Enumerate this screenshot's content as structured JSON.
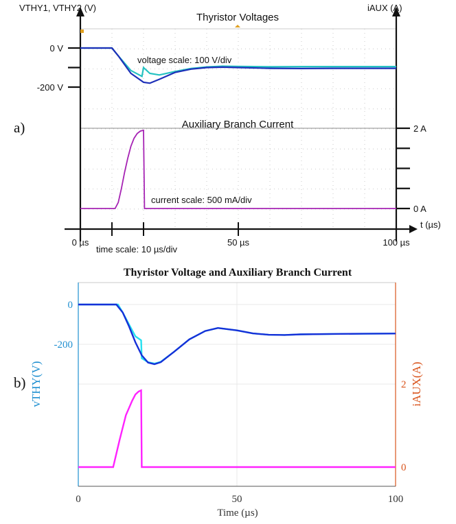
{
  "panel_a": {
    "label": "a)",
    "y_left_title": "VTHY1, VTHY2 (V)",
    "y_right_title": "iAUX (A)",
    "x_axis_label": "t (µs)",
    "time_scale_note": "time scale: 10 µs/div",
    "voltage_scale_note": "voltage scale: 100 V/div",
    "current_scale_note": "current scale: 500 mA/div",
    "colors": {
      "v1": "#1d2fb8",
      "v2": "#25c2c2",
      "i": "#a623b4",
      "axis": "#111111",
      "marker": "#e0a020"
    }
  },
  "panel_b": {
    "label": "b)",
    "colors": {
      "v1": "#1630d8",
      "v2": "#25e0f0",
      "i": "#ff22ff",
      "left_axis": "#1f8fd0",
      "right_axis": "#d9541c",
      "grid": "#e8e8e8"
    }
  },
  "chart_data": [
    {
      "type": "line",
      "panel": "a",
      "title": "Thyristor Voltages",
      "xticks": [
        "0 µs",
        "50 µs",
        "100 µs"
      ],
      "xlim": [
        0,
        100
      ],
      "yticks_left": [
        "0 V",
        "-200 V"
      ],
      "ylim_left": [
        -500,
        70
      ],
      "series": [
        {
          "name": "",
          "x": [
            0,
            10,
            12,
            16,
            20,
            22,
            25,
            30,
            35,
            40,
            45,
            50,
            60,
            70,
            80,
            90,
            100
          ],
          "values": [
            0,
            0,
            -40,
            -130,
            -175,
            -180,
            -160,
            -125,
            -108,
            -100,
            -98,
            -100,
            -104,
            -105,
            -104,
            -104,
            -104
          ]
        },
        {
          "name": "",
          "x": [
            0,
            10,
            12,
            16,
            19.5,
            20,
            22,
            25,
            30,
            35,
            40,
            45,
            50,
            60,
            70,
            80,
            90,
            100
          ],
          "values": [
            0,
            0,
            -40,
            -115,
            -145,
            -100,
            -130,
            -138,
            -120,
            -105,
            -97,
            -93,
            -94,
            -96,
            -95,
            -95,
            -95,
            -95
          ]
        }
      ]
    },
    {
      "type": "line",
      "panel": "a",
      "title": "Auxiliary Branch Current",
      "yticks_right": [
        "2 A",
        "0 A"
      ],
      "ylim_right": [
        -0.5,
        2.5
      ],
      "series": [
        {
          "name": "",
          "x": [
            0,
            11,
            12,
            13,
            14,
            15,
            16,
            17,
            18,
            19,
            20,
            20.3,
            100
          ],
          "values": [
            0,
            0,
            0.15,
            0.5,
            0.9,
            1.25,
            1.55,
            1.75,
            1.87,
            1.93,
            1.95,
            0,
            0
          ]
        }
      ]
    },
    {
      "type": "line",
      "panel": "b",
      "title": "Thyristor Voltage and Auxiliary Branch Current",
      "xlabel": "Time (µs)",
      "xticks": [
        "0",
        "50",
        "100"
      ],
      "xlim": [
        0,
        100
      ],
      "ylabel_left": "vTHY(V)",
      "yticks_left": [
        "0",
        "-200"
      ],
      "ylim_left": [
        -800,
        85
      ],
      "ylabel_right": "iAUX(A)",
      "yticks_right": [
        "2",
        "0"
      ],
      "ylim_right": [
        -0.25,
        2.8
      ],
      "series": [
        {
          "name": "",
          "x": [
            0,
            12,
            14,
            16,
            18,
            20,
            22,
            24,
            26,
            30,
            35,
            40,
            44,
            50,
            55,
            60,
            65,
            70,
            80,
            90,
            100
          ],
          "values": [
            0,
            0,
            -40,
            -110,
            -190,
            -255,
            -292,
            -300,
            -290,
            -240,
            -175,
            -133,
            -118,
            -130,
            -145,
            -152,
            -153,
            -150,
            -148,
            -147,
            -146
          ]
        },
        {
          "name": "",
          "x": [
            0,
            12.5,
            14,
            16,
            18,
            19.8,
            20,
            22,
            24,
            26,
            30,
            35,
            40,
            44,
            50,
            55,
            60,
            65,
            70,
            80,
            90,
            100
          ],
          "values": [
            0,
            0,
            -40,
            -100,
            -160,
            -180,
            -270,
            -290,
            -297,
            -288,
            -240,
            -175,
            -133,
            -118,
            -130,
            -145,
            -152,
            -153,
            -150,
            -148,
            -147,
            -146
          ]
        },
        {
          "name": "",
          "x": [
            0,
            11,
            13,
            15,
            17,
            18,
            19,
            19.8,
            20,
            100
          ],
          "values": [
            0,
            0,
            0.65,
            1.25,
            1.6,
            1.75,
            1.82,
            1.85,
            0,
            0
          ]
        }
      ]
    }
  ]
}
